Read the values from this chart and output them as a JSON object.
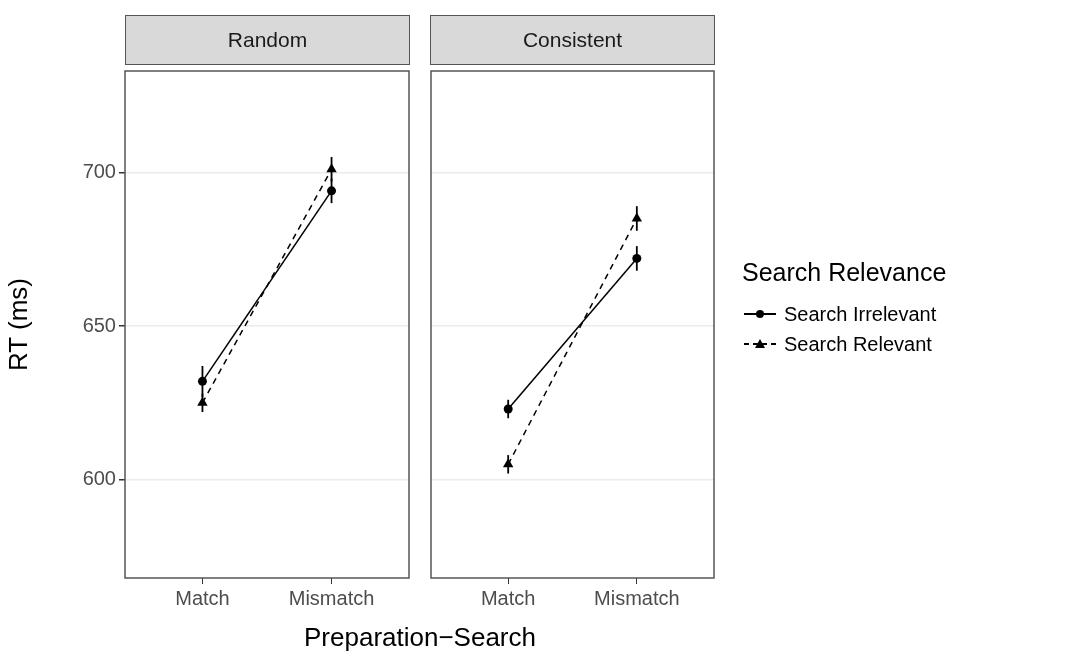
{
  "chart_data": [
    {
      "type": "line",
      "title": "Random",
      "xlabel": "Preparation−Search",
      "ylabel": "RT (ms)",
      "categories": [
        "Match",
        "Mismatch"
      ],
      "ylim": [
        568,
        733
      ],
      "yticks": [
        600,
        650,
        700
      ],
      "grid": "y",
      "legend": "right",
      "legend_title": "Search Relevance",
      "series": [
        {
          "name": "Search Irrelevant",
          "color": "#000000",
          "marker": "circle",
          "line_style": "solid",
          "values": [
            632,
            694
          ],
          "errors": [
            5,
            4
          ]
        },
        {
          "name": "Search Relevant",
          "color": "#000000",
          "marker": "triangle",
          "line_style": "dashed",
          "values": [
            625,
            701
          ],
          "errors": [
            3,
            4
          ]
        }
      ]
    },
    {
      "type": "line",
      "title": "Consistent",
      "categories": [
        "Match",
        "Mismatch"
      ],
      "ylim": [
        568,
        733
      ],
      "yticks": [
        600,
        650,
        700
      ],
      "grid": "y",
      "tick_labels": "x",
      "series": [
        {
          "color": "#000000",
          "marker": "circle",
          "line_style": "solid",
          "values": [
            623,
            672
          ],
          "errors": [
            3,
            4
          ]
        },
        {
          "color": "#000000",
          "marker": "triangle",
          "line_style": "dashed",
          "values": [
            605,
            685
          ],
          "errors": [
            3,
            4
          ]
        }
      ]
    }
  ]
}
